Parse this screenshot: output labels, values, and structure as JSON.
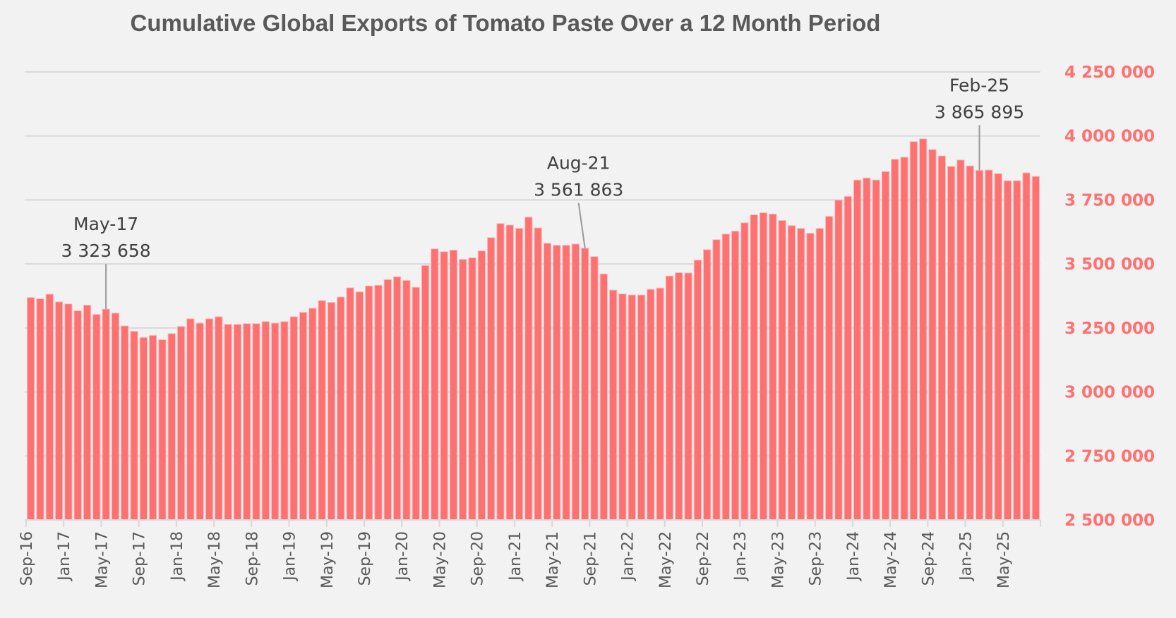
{
  "chart_data": {
    "type": "bar",
    "title": "Cumulative Global Exports of Tomato Paste Over a 12 Month Period",
    "xlabel": "",
    "ylabel": "",
    "ylim": [
      2500000,
      4250000
    ],
    "yticks": [
      2500000,
      2750000,
      3000000,
      3250000,
      3500000,
      3750000,
      4000000,
      4250000
    ],
    "ytick_labels": [
      "2 500 000",
      "2 750 000",
      "3 000 000",
      "3 250 000",
      "3 500 000",
      "3 750 000",
      "4 000 000",
      "4 250 000"
    ],
    "y_axis_side": "right",
    "grid": true,
    "bar_color": "#ff7070",
    "tick_label_color": "#ff7070",
    "start_month": "Sep-16",
    "xtick_every": 4,
    "xtick_labels": [
      "Sep-16",
      "Jan-17",
      "May-17",
      "Sep-17",
      "Jan-18",
      "May-18",
      "Sep-18",
      "Jan-19",
      "May-19",
      "Sep-19",
      "Jan-20",
      "May-20",
      "Sep-20",
      "Jan-21",
      "May-21",
      "Sep-21",
      "Jan-22",
      "May-22",
      "Sep-22",
      "Jan-23",
      "May-23",
      "Sep-23",
      "Jan-24",
      "May-24",
      "Sep-24",
      "Jan-25",
      "May-25"
    ],
    "categories": [
      "Sep-16",
      "Oct-16",
      "Nov-16",
      "Dec-16",
      "Jan-17",
      "Feb-17",
      "Mar-17",
      "Apr-17",
      "May-17",
      "Jun-17",
      "Jul-17",
      "Aug-17",
      "Sep-17",
      "Oct-17",
      "Nov-17",
      "Dec-17",
      "Jan-18",
      "Feb-18",
      "Mar-18",
      "Apr-18",
      "May-18",
      "Jun-18",
      "Jul-18",
      "Aug-18",
      "Sep-18",
      "Oct-18",
      "Nov-18",
      "Dec-18",
      "Jan-19",
      "Feb-19",
      "Mar-19",
      "Apr-19",
      "May-19",
      "Jun-19",
      "Jul-19",
      "Aug-19",
      "Sep-19",
      "Oct-19",
      "Nov-19",
      "Dec-19",
      "Jan-20",
      "Feb-20",
      "Mar-20",
      "Apr-20",
      "May-20",
      "Jun-20",
      "Jul-20",
      "Aug-20",
      "Sep-20",
      "Oct-20",
      "Nov-20",
      "Dec-20",
      "Jan-21",
      "Feb-21",
      "Mar-21",
      "Apr-21",
      "May-21",
      "Jun-21",
      "Jul-21",
      "Aug-21",
      "Sep-21",
      "Oct-21",
      "Nov-21",
      "Dec-21",
      "Jan-22",
      "Feb-22",
      "Mar-22",
      "Apr-22",
      "May-22",
      "Jun-22",
      "Jul-22",
      "Aug-22",
      "Sep-22",
      "Oct-22",
      "Nov-22",
      "Dec-22",
      "Jan-23",
      "Feb-23",
      "Mar-23",
      "Apr-23",
      "May-23",
      "Jun-23",
      "Jul-23",
      "Aug-23",
      "Sep-23",
      "Oct-23",
      "Nov-23",
      "Dec-23",
      "Jan-24",
      "Feb-24",
      "Mar-24",
      "Apr-24",
      "May-24",
      "Jun-24",
      "Jul-24",
      "Aug-24",
      "Sep-24",
      "Oct-24",
      "Nov-24",
      "Dec-24",
      "Jan-25",
      "Feb-25",
      "Mar-25",
      "Apr-25",
      "May-25",
      "Jun-25",
      "Jul-25",
      "Aug-25"
    ],
    "values": [
      3369000,
      3364000,
      3382000,
      3352000,
      3344000,
      3317000,
      3339000,
      3303000,
      3323658,
      3308000,
      3258000,
      3237000,
      3213000,
      3221000,
      3204000,
      3228000,
      3256000,
      3286000,
      3269000,
      3286000,
      3294000,
      3264000,
      3264000,
      3267000,
      3267000,
      3275000,
      3269000,
      3275000,
      3294000,
      3311000,
      3327000,
      3357000,
      3350000,
      3371000,
      3407000,
      3391000,
      3414000,
      3417000,
      3439000,
      3450000,
      3436000,
      3409000,
      3494000,
      3559000,
      3548000,
      3554000,
      3518000,
      3524000,
      3551000,
      3603000,
      3658000,
      3652000,
      3639000,
      3683000,
      3641000,
      3581000,
      3573000,
      3573000,
      3578000,
      3561863,
      3529000,
      3461000,
      3398000,
      3383000,
      3379000,
      3379000,
      3401000,
      3406000,
      3453000,
      3466000,
      3465000,
      3515000,
      3556000,
      3595000,
      3617000,
      3628000,
      3661000,
      3692000,
      3700000,
      3695000,
      3670000,
      3650000,
      3639000,
      3620000,
      3639000,
      3686000,
      3750000,
      3764000,
      3828000,
      3836000,
      3828000,
      3861000,
      3909000,
      3917000,
      3978000,
      3989000,
      3947000,
      3922000,
      3881000,
      3906000,
      3883000,
      3865895,
      3867000,
      3853000,
      3825000,
      3825000,
      3856000,
      3842000
    ],
    "annotations": [
      {
        "month": "May-17",
        "label_month": "May-17",
        "label_value": "3 323 658"
      },
      {
        "month": "Aug-21",
        "label_month": "Aug-21",
        "label_value": "3 561 863"
      },
      {
        "month": "Feb-25",
        "label_month": "Feb-25",
        "label_value": "3 865 895"
      }
    ]
  }
}
